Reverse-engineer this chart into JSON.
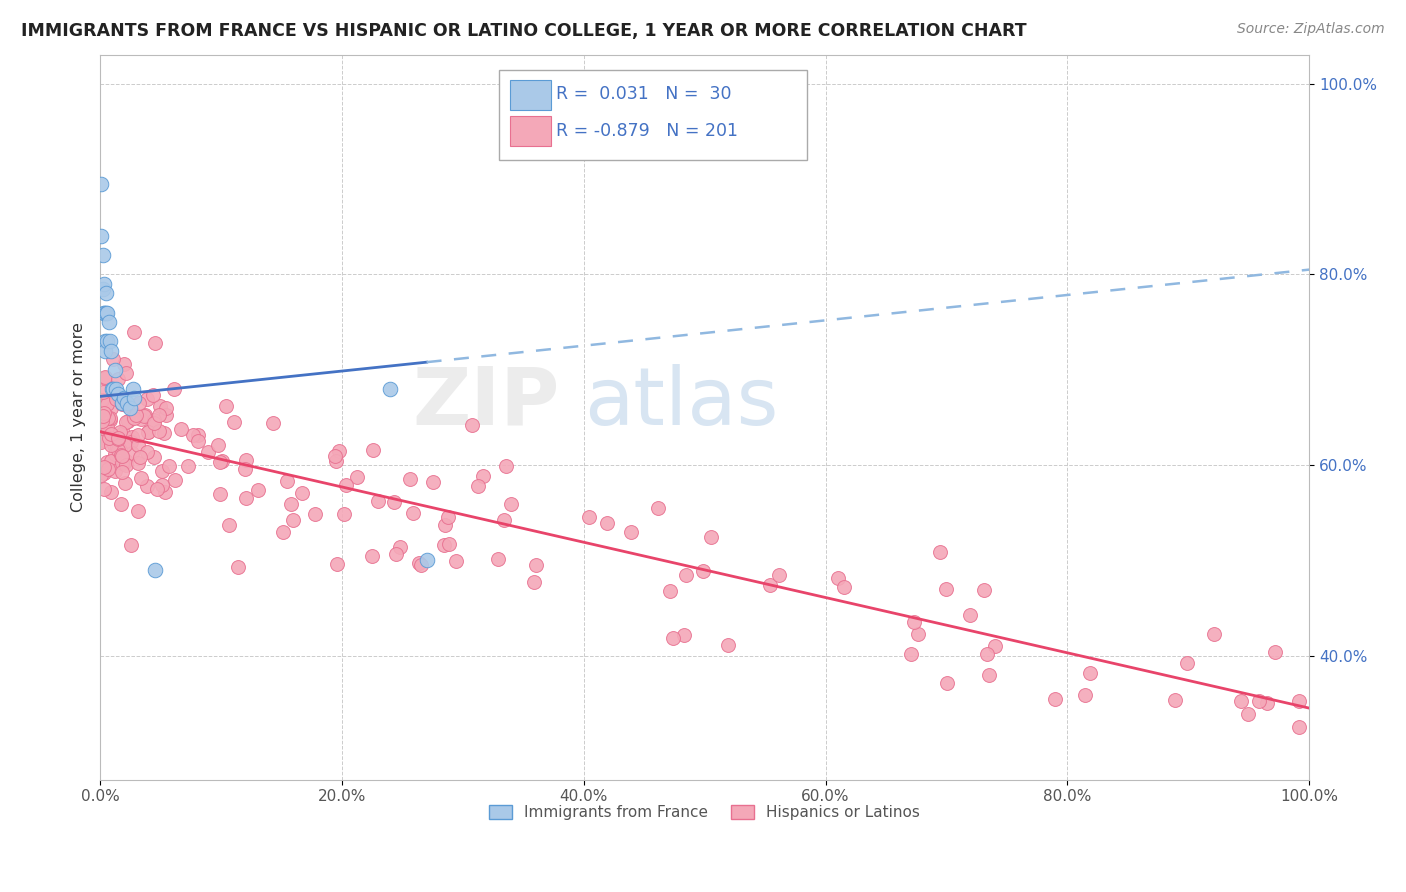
{
  "title": "IMMIGRANTS FROM FRANCE VS HISPANIC OR LATINO COLLEGE, 1 YEAR OR MORE CORRELATION CHART",
  "source": "Source: ZipAtlas.com",
  "ylabel": "College, 1 year or more",
  "xlim": [
    0,
    1
  ],
  "ylim": [
    0.27,
    1.03
  ],
  "yticks": [
    0.4,
    0.6,
    0.8,
    1.0
  ],
  "ytick_labels": [
    "40.0%",
    "60.0%",
    "80.0%",
    "100.0%"
  ],
  "xticks": [
    0.0,
    0.2,
    0.4,
    0.6,
    0.8,
    1.0
  ],
  "xtick_labels": [
    "0.0%",
    "20.0%",
    "40.0%",
    "60.0%",
    "80.0%",
    "100.0%"
  ],
  "blue_color": "#aac9e8",
  "pink_color": "#f4a8b8",
  "blue_edge": "#5b9bd5",
  "pink_edge": "#e87090",
  "trend_blue": "#4472c4",
  "trend_blue_dash": "#90b8e0",
  "trend_pink": "#e8446a",
  "legend_R1": "0.031",
  "legend_N1": "30",
  "legend_R2": "-0.879",
  "legend_N2": "201",
  "legend_label1": "Immigrants from France",
  "legend_label2": "Hispanics or Latinos",
  "blue_trend_x0": 0.0,
  "blue_trend_x_solid_end": 0.27,
  "blue_trend_x1": 1.0,
  "blue_trend_y0": 0.672,
  "blue_trend_y1": 0.805,
  "pink_trend_y0": 0.635,
  "pink_trend_y1": 0.345
}
